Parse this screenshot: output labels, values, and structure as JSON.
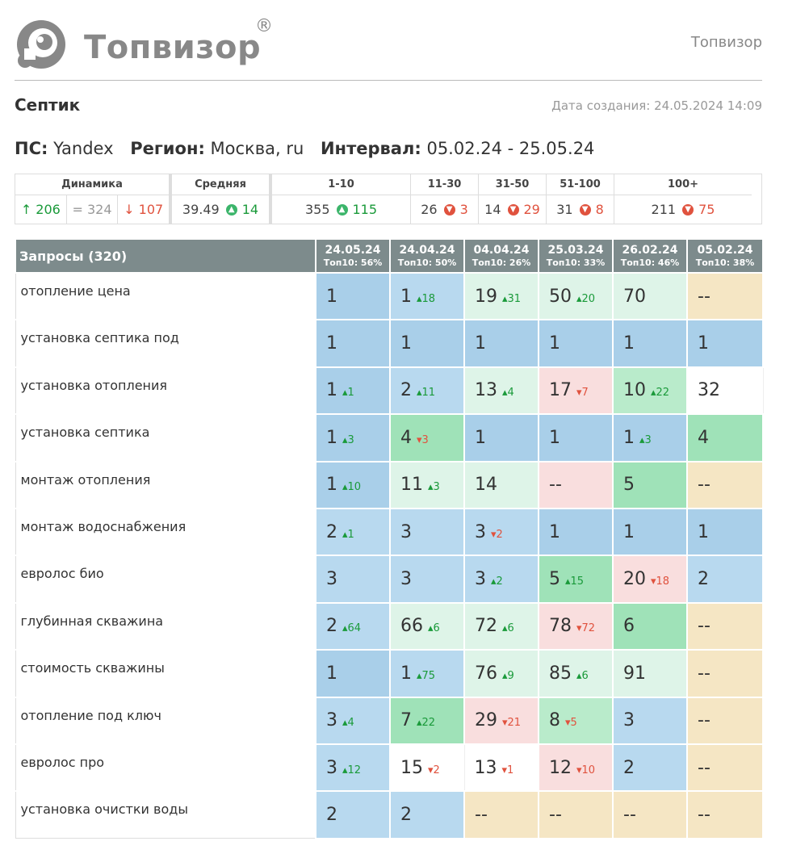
{
  "header": {
    "logo_text": "Топвизор",
    "logo_reg": "®",
    "right_text": "Топвизор"
  },
  "page": {
    "title": "Септик",
    "created": "Дата создания: 24.05.2024 14:09"
  },
  "params": {
    "engine_label": "ПС:",
    "engine": "Yandex",
    "region_label": "Регион:",
    "region": "Москва, ru",
    "interval_label": "Интервал:",
    "interval": "05.02.24 - 25.05.24"
  },
  "summary": {
    "dynamics_label": "Динамика",
    "dyn_up": "↑ 206",
    "dyn_eq": "= 324",
    "dyn_down": "↓ 107",
    "avg_label": "Средняя",
    "avg_value": "39.49",
    "avg_delta": "14",
    "groups": [
      {
        "label": "1-10",
        "value": "355",
        "delta": "115",
        "dir": "up"
      },
      {
        "label": "11-30",
        "value": "26",
        "delta": "3",
        "dir": "down"
      },
      {
        "label": "31-50",
        "value": "14",
        "delta": "29",
        "dir": "down"
      },
      {
        "label": "51-100",
        "value": "31",
        "delta": "8",
        "dir": "down"
      },
      {
        "label": "100+",
        "value": "211",
        "delta": "75",
        "dir": "down"
      }
    ]
  },
  "table": {
    "query_header": "Запросы (320)",
    "dates": [
      {
        "date": "24.05.24",
        "top": "Топ10: 56%"
      },
      {
        "date": "24.04.24",
        "top": "Топ10: 50%"
      },
      {
        "date": "04.04.24",
        "top": "Топ10: 26%"
      },
      {
        "date": "25.03.24",
        "top": "Топ10: 33%"
      },
      {
        "date": "26.02.24",
        "top": "Топ10: 46%"
      },
      {
        "date": "05.02.24",
        "top": "Топ10: 38%"
      }
    ],
    "rows": [
      {
        "query": "отопление цена",
        "cells": [
          {
            "pos": "1",
            "delta": "",
            "dir": "",
            "color": "blue"
          },
          {
            "pos": "1",
            "delta": "18",
            "dir": "up",
            "color": "lblue"
          },
          {
            "pos": "19",
            "delta": "31",
            "dir": "up",
            "color": "lgreen"
          },
          {
            "pos": "50",
            "delta": "20",
            "dir": "up",
            "color": "lgreen"
          },
          {
            "pos": "70",
            "delta": "",
            "dir": "",
            "color": "lgreen"
          },
          {
            "pos": "--",
            "delta": "",
            "dir": "",
            "color": "yellow"
          }
        ]
      },
      {
        "query": "установка септика под",
        "cells": [
          {
            "pos": "1",
            "delta": "",
            "dir": "",
            "color": "blue"
          },
          {
            "pos": "1",
            "delta": "",
            "dir": "",
            "color": "blue"
          },
          {
            "pos": "1",
            "delta": "",
            "dir": "",
            "color": "blue"
          },
          {
            "pos": "1",
            "delta": "",
            "dir": "",
            "color": "blue"
          },
          {
            "pos": "1",
            "delta": "",
            "dir": "",
            "color": "blue"
          },
          {
            "pos": "1",
            "delta": "",
            "dir": "",
            "color": "blue"
          }
        ]
      },
      {
        "query": "установка отопления",
        "cells": [
          {
            "pos": "1",
            "delta": "1",
            "dir": "up",
            "color": "blue"
          },
          {
            "pos": "2",
            "delta": "11",
            "dir": "up",
            "color": "lblue"
          },
          {
            "pos": "13",
            "delta": "4",
            "dir": "up",
            "color": "lgreen"
          },
          {
            "pos": "17",
            "delta": "7",
            "dir": "down",
            "color": "pink"
          },
          {
            "pos": "10",
            "delta": "22",
            "dir": "up",
            "color": "mgreen"
          },
          {
            "pos": "32",
            "delta": "",
            "dir": "",
            "color": "white"
          }
        ]
      },
      {
        "query": "установка септика",
        "cells": [
          {
            "pos": "1",
            "delta": "3",
            "dir": "up",
            "color": "blue"
          },
          {
            "pos": "4",
            "delta": "3",
            "dir": "down",
            "color": "green"
          },
          {
            "pos": "1",
            "delta": "",
            "dir": "",
            "color": "blue"
          },
          {
            "pos": "1",
            "delta": "",
            "dir": "",
            "color": "blue"
          },
          {
            "pos": "1",
            "delta": "3",
            "dir": "up",
            "color": "blue"
          },
          {
            "pos": "4",
            "delta": "",
            "dir": "",
            "color": "green"
          }
        ]
      },
      {
        "query": "монтаж отопления",
        "cells": [
          {
            "pos": "1",
            "delta": "10",
            "dir": "up",
            "color": "blue"
          },
          {
            "pos": "11",
            "delta": "3",
            "dir": "up",
            "color": "lgreen"
          },
          {
            "pos": "14",
            "delta": "",
            "dir": "",
            "color": "lgreen"
          },
          {
            "pos": "--",
            "delta": "",
            "dir": "",
            "color": "pink"
          },
          {
            "pos": "5",
            "delta": "",
            "dir": "",
            "color": "green"
          },
          {
            "pos": "--",
            "delta": "",
            "dir": "",
            "color": "yellow"
          }
        ]
      },
      {
        "query": "монтаж водоснабжения",
        "cells": [
          {
            "pos": "2",
            "delta": "1",
            "dir": "up",
            "color": "lblue"
          },
          {
            "pos": "3",
            "delta": "",
            "dir": "",
            "color": "lblue"
          },
          {
            "pos": "3",
            "delta": "2",
            "dir": "down",
            "color": "lblue"
          },
          {
            "pos": "1",
            "delta": "",
            "dir": "",
            "color": "blue"
          },
          {
            "pos": "1",
            "delta": "",
            "dir": "",
            "color": "blue"
          },
          {
            "pos": "1",
            "delta": "",
            "dir": "",
            "color": "blue"
          }
        ]
      },
      {
        "query": "евролос био",
        "cells": [
          {
            "pos": "3",
            "delta": "",
            "dir": "",
            "color": "lblue"
          },
          {
            "pos": "3",
            "delta": "",
            "dir": "",
            "color": "lblue"
          },
          {
            "pos": "3",
            "delta": "2",
            "dir": "up",
            "color": "lblue"
          },
          {
            "pos": "5",
            "delta": "15",
            "dir": "up",
            "color": "green"
          },
          {
            "pos": "20",
            "delta": "18",
            "dir": "down",
            "color": "pink"
          },
          {
            "pos": "2",
            "delta": "",
            "dir": "",
            "color": "lblue"
          }
        ]
      },
      {
        "query": "глубинная скважина",
        "cells": [
          {
            "pos": "2",
            "delta": "64",
            "dir": "up",
            "color": "lblue"
          },
          {
            "pos": "66",
            "delta": "6",
            "dir": "up",
            "color": "lgreen"
          },
          {
            "pos": "72",
            "delta": "6",
            "dir": "up",
            "color": "lgreen"
          },
          {
            "pos": "78",
            "delta": "72",
            "dir": "down",
            "color": "pink"
          },
          {
            "pos": "6",
            "delta": "",
            "dir": "",
            "color": "green"
          },
          {
            "pos": "--",
            "delta": "",
            "dir": "",
            "color": "yellow"
          }
        ]
      },
      {
        "query": "стоимость скважины",
        "cells": [
          {
            "pos": "1",
            "delta": "",
            "dir": "",
            "color": "blue"
          },
          {
            "pos": "1",
            "delta": "75",
            "dir": "up",
            "color": "lblue"
          },
          {
            "pos": "76",
            "delta": "9",
            "dir": "up",
            "color": "lgreen"
          },
          {
            "pos": "85",
            "delta": "6",
            "dir": "up",
            "color": "lgreen"
          },
          {
            "pos": "91",
            "delta": "",
            "dir": "",
            "color": "lgreen"
          },
          {
            "pos": "--",
            "delta": "",
            "dir": "",
            "color": "yellow"
          }
        ]
      },
      {
        "query": "отопление под ключ",
        "cells": [
          {
            "pos": "3",
            "delta": "4",
            "dir": "up",
            "color": "lblue"
          },
          {
            "pos": "7",
            "delta": "22",
            "dir": "up",
            "color": "green"
          },
          {
            "pos": "29",
            "delta": "21",
            "dir": "down",
            "color": "pink"
          },
          {
            "pos": "8",
            "delta": "5",
            "dir": "down",
            "color": "mgreen"
          },
          {
            "pos": "3",
            "delta": "",
            "dir": "",
            "color": "lblue"
          },
          {
            "pos": "--",
            "delta": "",
            "dir": "",
            "color": "yellow"
          }
        ]
      },
      {
        "query": "евролос про",
        "cells": [
          {
            "pos": "3",
            "delta": "12",
            "dir": "up",
            "color": "lblue"
          },
          {
            "pos": "15",
            "delta": "2",
            "dir": "down",
            "color": "white"
          },
          {
            "pos": "13",
            "delta": "1",
            "dir": "down",
            "color": "white"
          },
          {
            "pos": "12",
            "delta": "10",
            "dir": "down",
            "color": "pink"
          },
          {
            "pos": "2",
            "delta": "",
            "dir": "",
            "color": "lblue"
          },
          {
            "pos": "--",
            "delta": "",
            "dir": "",
            "color": "yellow"
          }
        ]
      },
      {
        "query": "установка очистки воды",
        "cells": [
          {
            "pos": "2",
            "delta": "",
            "dir": "",
            "color": "lblue"
          },
          {
            "pos": "2",
            "delta": "",
            "dir": "",
            "color": "lblue"
          },
          {
            "pos": "--",
            "delta": "",
            "dir": "",
            "color": "yellow"
          },
          {
            "pos": "--",
            "delta": "",
            "dir": "",
            "color": "yellow"
          },
          {
            "pos": "--",
            "delta": "",
            "dir": "",
            "color": "yellow"
          },
          {
            "pos": "--",
            "delta": "",
            "dir": "",
            "color": "yellow"
          }
        ]
      }
    ]
  }
}
